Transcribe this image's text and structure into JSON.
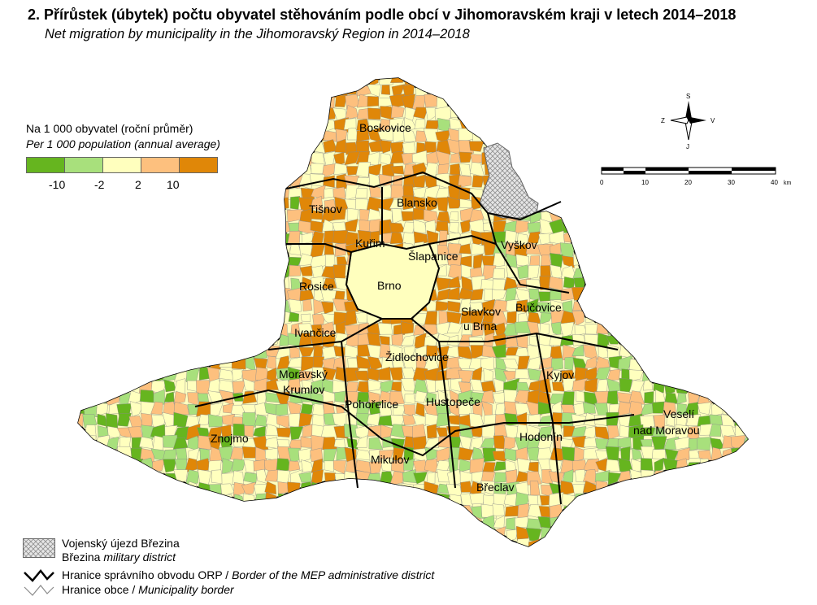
{
  "title": {
    "cz": "2. Přírůstek (úbytek) počtu obyvatel stěhováním podle obcí v Jihomoravském kraji v letech 2014–2018",
    "en": "Net migration by municipality in the Jihomoravský Region in 2014–2018"
  },
  "legend": {
    "heading_cz": "Na 1 000 obyvatel (roční průměr)",
    "heading_en": "Per 1 000 population (annual average)",
    "classes": [
      {
        "color": "#66b51f"
      },
      {
        "color": "#a8e07c"
      },
      {
        "color": "#ffffbe"
      },
      {
        "color": "#fdc07e"
      },
      {
        "color": "#e08708"
      }
    ],
    "breaks": [
      "-10",
      "-2",
      "2",
      "10"
    ]
  },
  "colors": {
    "admin_border": "#000000",
    "municipal_border": "#8a8a8a",
    "military_fill": "#dcdcdc"
  },
  "map_labels": {
    "boskovice": "Boskovice",
    "blansko": "Blansko",
    "tisnov": "Tišnov",
    "kurim": "Kuřim",
    "slapanice": "Šlapanice",
    "vyskov": "Vyškov",
    "rosice": "Rosice",
    "brno": "Brno",
    "bucovice": "Bučovice",
    "slavkov1": "Slavkov",
    "slavkov2": "u Brna",
    "ivancice": "Ivančice",
    "zidlochovice": "Židlochovice",
    "kyjov": "Kyjov",
    "mkrumlov1": "Moravský",
    "mkrumlov2": "Krumlov",
    "pohorelice": "Pohořelice",
    "hustopece": "Hustopeče",
    "veseli1": "Veselí",
    "veseli2": "nad Moravou",
    "znojmo": "Znojmo",
    "hodonin": "Hodonín",
    "mikulov": "Mikulov",
    "breclav": "Břeclav"
  },
  "compass": {
    "n": "S",
    "s": "J",
    "w": "Z",
    "e": "V"
  },
  "scale": {
    "ticks": [
      "0",
      "10",
      "20",
      "30",
      "40"
    ],
    "unit": "km"
  },
  "bottom_legend": {
    "military_cz": "Vojenský újezd Březina",
    "military_en_prefix": "Březina",
    "military_en_suffix": "military district",
    "orp_cz": "Hranice správního obvodu ORP /",
    "orp_en": "Border of the MEP administrative district",
    "obec_cz": "Hranice obce /",
    "obec_en": "Municipality border"
  }
}
